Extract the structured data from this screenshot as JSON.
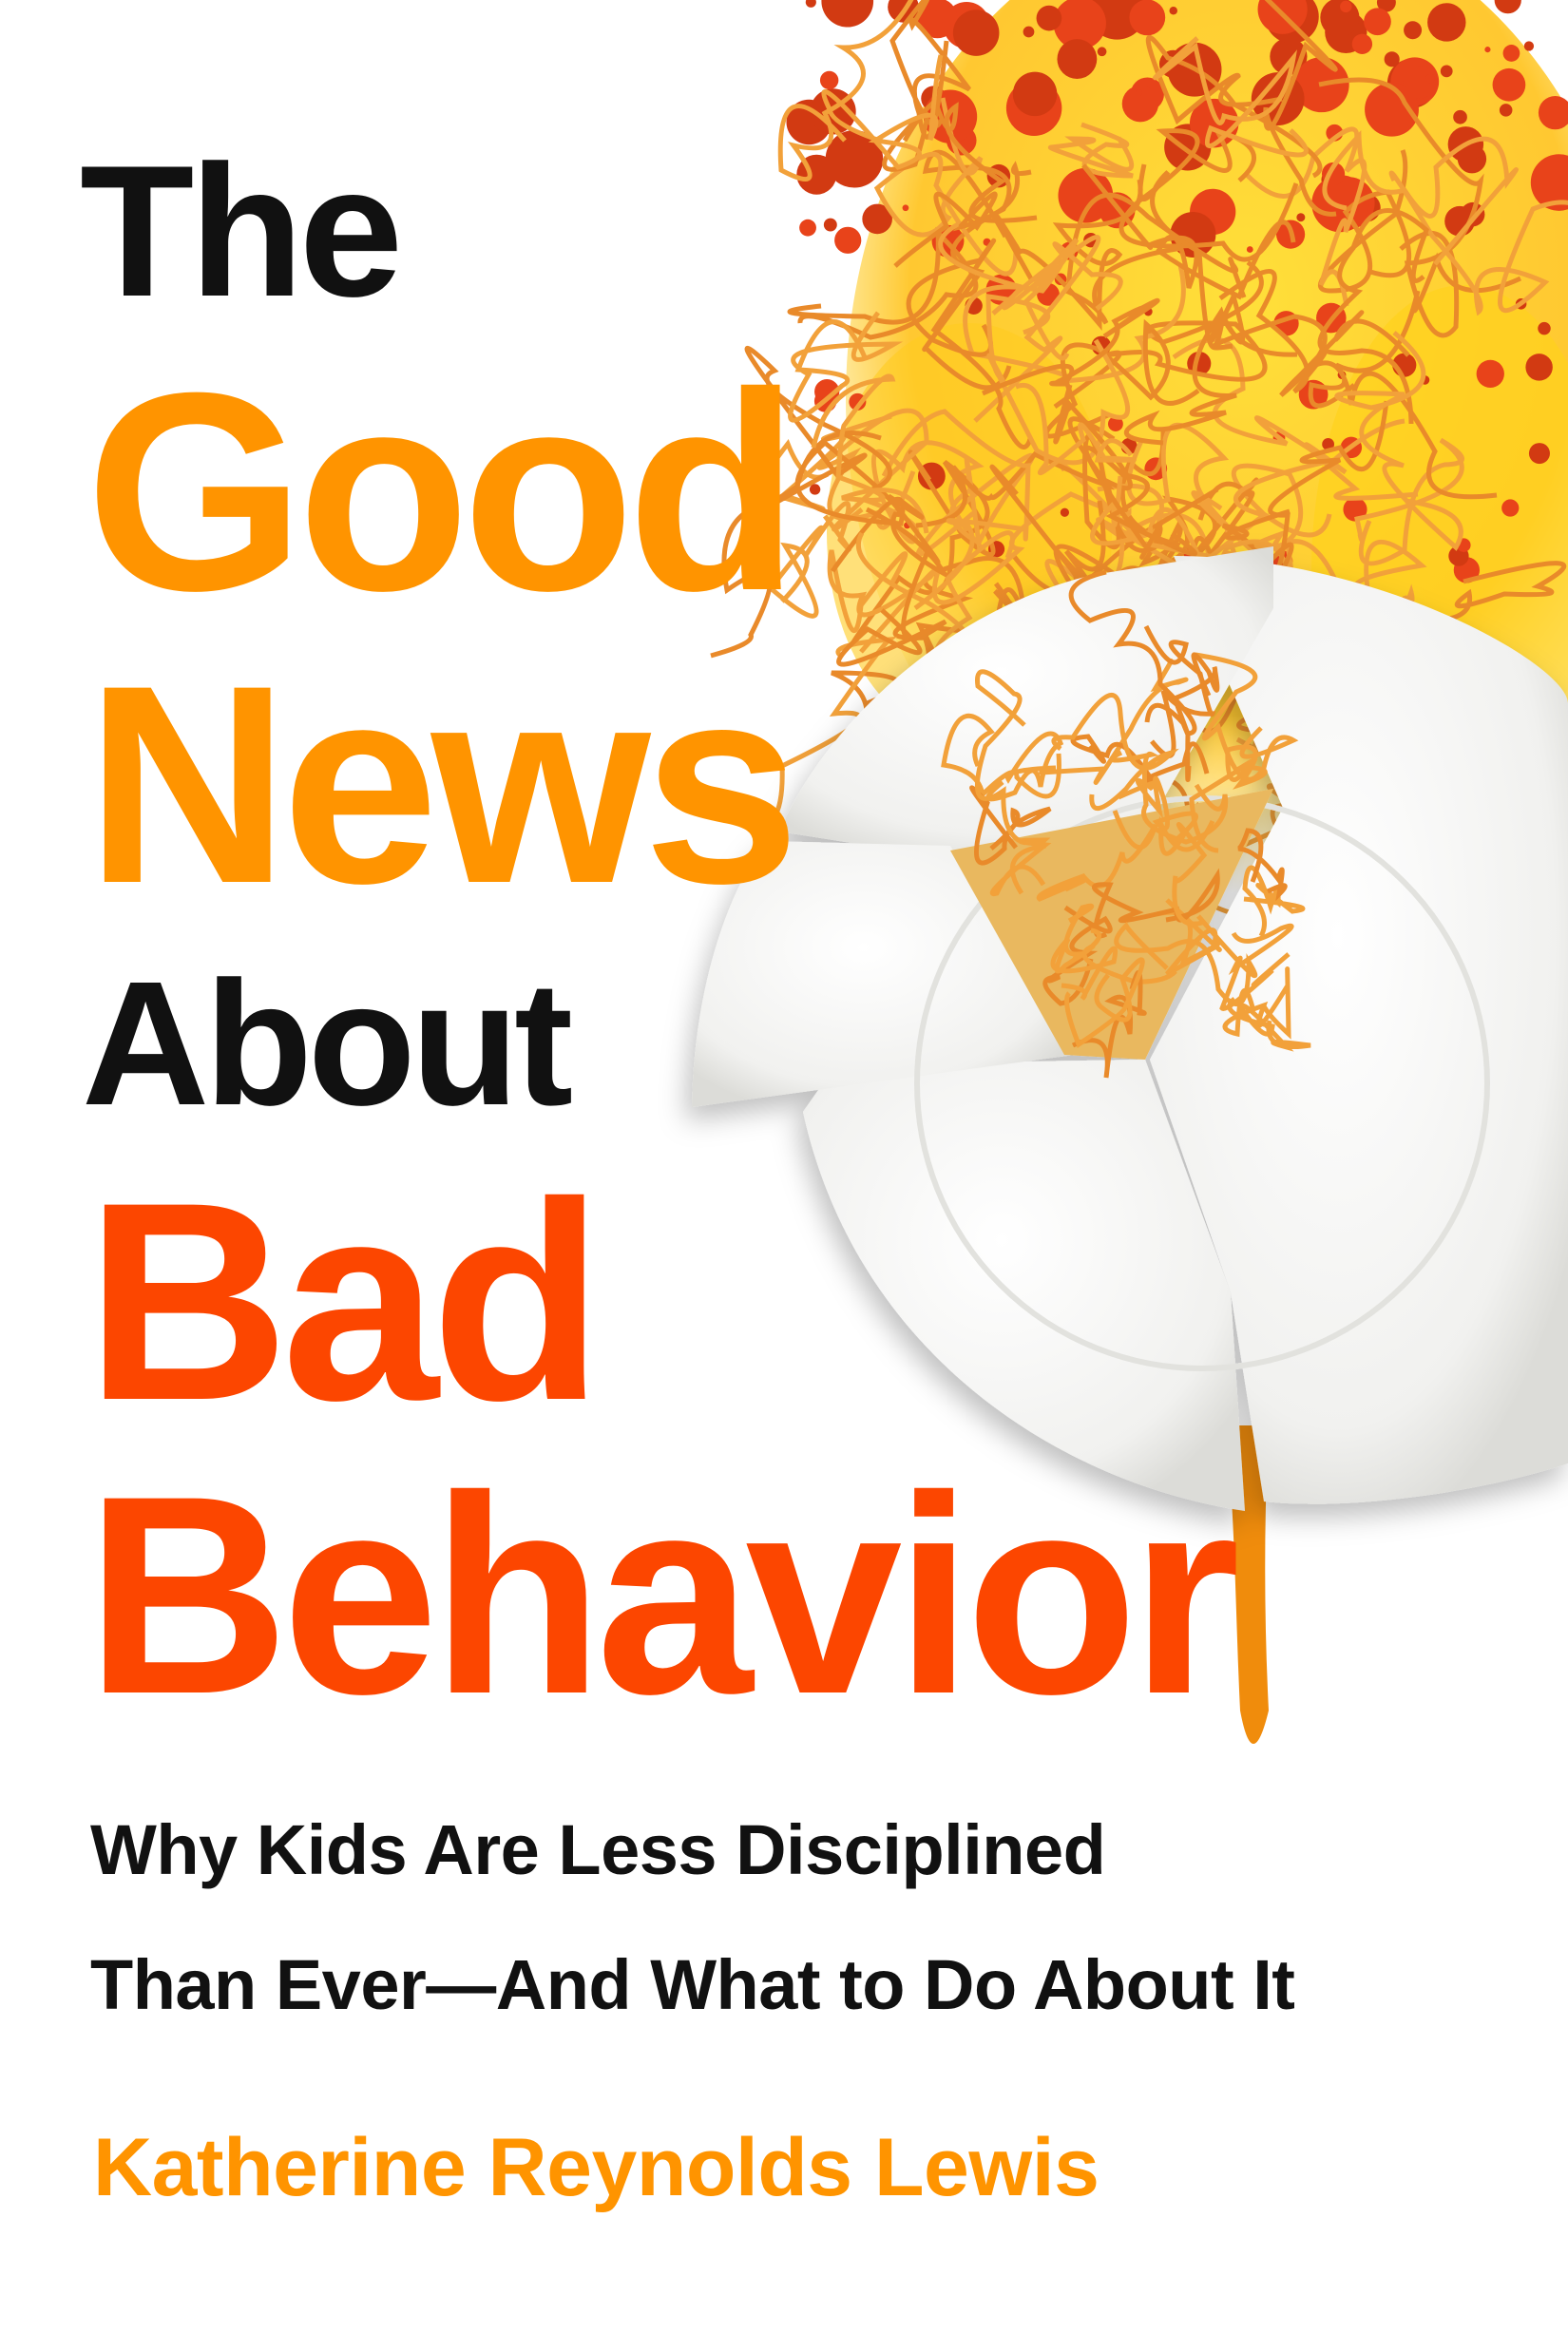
{
  "cover": {
    "title_lines": [
      "The",
      "Good",
      "News",
      "About",
      "Bad",
      "Behavior"
    ],
    "subtitle_lines": [
      "Why Kids Are Less Disciplined",
      "Than Ever—And What to Do About It"
    ],
    "author": "Katherine Reynolds Lewis",
    "colors": {
      "black": "#111111",
      "orange": "#ff9400",
      "red_orange": "#fc4600",
      "sauce": "#e8431a",
      "oil_yellow": "#ffd21c",
      "plate": "#f4f4f2"
    },
    "illustration": "broken-plate-with-spaghetti"
  }
}
